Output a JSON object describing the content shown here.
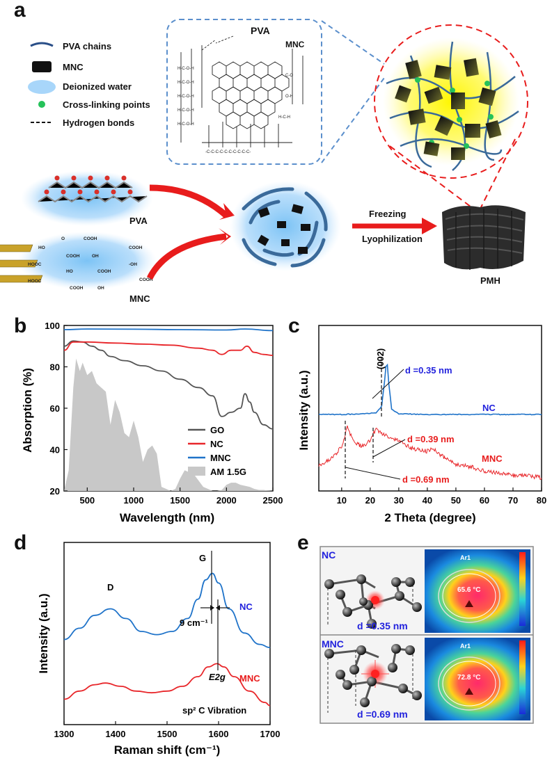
{
  "panels": {
    "a": "a",
    "b": "b",
    "c": "c",
    "d": "d",
    "e": "e"
  },
  "panel_a": {
    "legend": [
      {
        "label": "PVA chains"
      },
      {
        "label": "MNC"
      },
      {
        "label": "Deionized water"
      },
      {
        "label": "Cross-linking points"
      },
      {
        "label": "Hydrogen bonds"
      }
    ],
    "inset_pva": "PVA",
    "inset_mnc": "MNC",
    "pva_label": "PVA",
    "mnc_label": "MNC",
    "step1": "Freezing",
    "step2": "Lyophilization",
    "product": "PMH"
  },
  "panel_e": {
    "nc_label": "NC",
    "nc_d": "d =0.35 nm",
    "nc_temp": "65.6 °C",
    "mnc_label": "MNC",
    "mnc_d": "d =0.69 nm",
    "mnc_temp": "72.8 °C",
    "ar": "Ar1"
  },
  "colors": {
    "GO": "#555555",
    "NC": "#e8262a",
    "MNC": "#1f73c9",
    "AM": "#c8c8c8",
    "blue": "#2222dd",
    "red": "#e81c1c"
  },
  "chart_data": [
    {
      "id": "b",
      "type": "line",
      "title": "",
      "xlabel": "Wavelength (nm)",
      "ylabel": "Absorption (%)",
      "xlim": [
        250,
        2500
      ],
      "ylim": [
        20,
        100
      ],
      "xticks": [
        500,
        1000,
        1500,
        2000,
        2500
      ],
      "yticks": [
        20,
        40,
        60,
        80,
        100
      ],
      "legend": [
        "GO",
        "NC",
        "MNC",
        "AM 1.5G"
      ],
      "series": [
        {
          "name": "GO",
          "x": [
            250,
            350,
            450,
            550,
            650,
            750,
            900,
            1100,
            1300,
            1500,
            1700,
            1850,
            1950,
            2050,
            2150,
            2200,
            2250,
            2300,
            2400,
            2500
          ],
          "y": [
            90,
            92.5,
            92,
            90,
            88,
            85,
            83,
            80.5,
            78,
            74,
            70,
            66,
            56,
            58,
            60,
            67,
            63,
            58,
            52,
            50
          ]
        },
        {
          "name": "NC",
          "x": [
            250,
            350,
            500,
            800,
            1100,
            1400,
            1700,
            1850,
            1950,
            2050,
            2150,
            2220,
            2300,
            2400,
            2500
          ],
          "y": [
            88,
            92,
            92,
            91.5,
            91,
            90.5,
            89,
            88,
            86,
            88,
            88,
            90,
            87,
            86,
            85.5
          ]
        },
        {
          "name": "MNC",
          "x": [
            250,
            500,
            1000,
            1500,
            2000,
            2200,
            2500
          ],
          "y": [
            98,
            98.3,
            98.2,
            98,
            97.8,
            98.3,
            97.5
          ]
        },
        {
          "name": "AM 1.5G",
          "x": [
            250,
            300,
            350,
            380,
            420,
            450,
            500,
            550,
            600,
            650,
            700,
            750,
            800,
            850,
            900,
            950,
            1000,
            1050,
            1100,
            1150,
            1200,
            1250,
            1300,
            1350,
            1400,
            1450,
            1500,
            1550,
            1600,
            1650,
            1700,
            1750,
            1800,
            1850,
            1900,
            1950,
            2000,
            2050,
            2100,
            2150,
            2200,
            2250,
            2300,
            2350,
            2400,
            2450,
            2500
          ],
          "y": [
            20,
            30,
            70,
            84,
            78,
            82,
            76,
            78,
            72,
            70,
            68,
            52,
            64,
            58,
            48,
            46,
            54,
            46,
            34,
            40,
            42,
            38,
            22,
            21,
            20,
            21,
            26,
            30,
            29,
            28,
            25,
            22,
            21,
            20,
            20,
            20.5,
            23,
            24,
            24,
            23,
            22.5,
            22,
            21,
            20.5,
            20.5,
            20.2,
            20
          ]
        }
      ]
    },
    {
      "id": "c",
      "type": "line",
      "title": "",
      "xlabel": "2 Theta (degree)",
      "ylabel": "Intensity (a.u.)",
      "xlim": [
        2,
        80
      ],
      "xticks": [
        10,
        20,
        30,
        40,
        50,
        60,
        70,
        80
      ],
      "series": [
        {
          "name": "NC",
          "label": "NC",
          "peak": "(002)",
          "annotation": "d =0.35 nm",
          "x": [
            2,
            10,
            18,
            22,
            24,
            25,
            25.8,
            26.5,
            27.5,
            30,
            40,
            50,
            60,
            70,
            80
          ],
          "y": [
            0.3,
            0.3,
            0.31,
            0.32,
            0.4,
            0.7,
            1.0,
            0.68,
            0.36,
            0.31,
            0.3,
            0.3,
            0.3,
            0.3,
            0.3
          ]
        },
        {
          "name": "MNC",
          "label": "MNC",
          "annotations": [
            "d =0.39 nm",
            "d =0.69 nm"
          ],
          "x": [
            2,
            6,
            10,
            12,
            14,
            17,
            20,
            22,
            24,
            27,
            30,
            35,
            40,
            42,
            45,
            50,
            55,
            60,
            65,
            70,
            75,
            80
          ],
          "y": [
            0.05,
            0.07,
            0.13,
            0.22,
            0.16,
            0.13,
            0.16,
            0.21,
            0.19,
            0.17,
            0.16,
            0.12,
            0.11,
            0.12,
            0.09,
            0.05,
            0.04,
            0.02,
            0.01,
            0.0,
            0.0,
            -0.01
          ]
        }
      ]
    },
    {
      "id": "d",
      "type": "line",
      "title": "",
      "xlabel": "Raman shift (cm⁻¹)",
      "ylabel": "Intensity (a.u.)",
      "xlim": [
        1300,
        1700
      ],
      "xticks": [
        1300,
        1400,
        1500,
        1600,
        1700
      ],
      "annotations": {
        "D": "D",
        "G": "G",
        "shift": "9 cm⁻¹",
        "e2g": "E2g",
        "vibration": "sp² C Vibration"
      },
      "series": [
        {
          "name": "NC",
          "label": "NC",
          "x": [
            1300,
            1330,
            1360,
            1390,
            1420,
            1450,
            1480,
            1510,
            1540,
            1560,
            1575,
            1588,
            1600,
            1620,
            1650,
            1680,
            1700
          ],
          "y": [
            0.45,
            0.52,
            0.6,
            0.64,
            0.58,
            0.5,
            0.48,
            0.5,
            0.58,
            0.7,
            0.82,
            0.86,
            0.8,
            0.64,
            0.49,
            0.42,
            0.4
          ]
        },
        {
          "name": "MNC",
          "label": "MNC",
          "x": [
            1300,
            1330,
            1360,
            1380,
            1410,
            1440,
            1470,
            1500,
            1530,
            1560,
            1580,
            1597,
            1610,
            1630,
            1660,
            1690,
            1700
          ],
          "y": [
            0.08,
            0.13,
            0.17,
            0.18,
            0.16,
            0.13,
            0.12,
            0.13,
            0.16,
            0.22,
            0.28,
            0.3,
            0.28,
            0.22,
            0.13,
            0.06,
            0.04
          ]
        }
      ]
    }
  ]
}
